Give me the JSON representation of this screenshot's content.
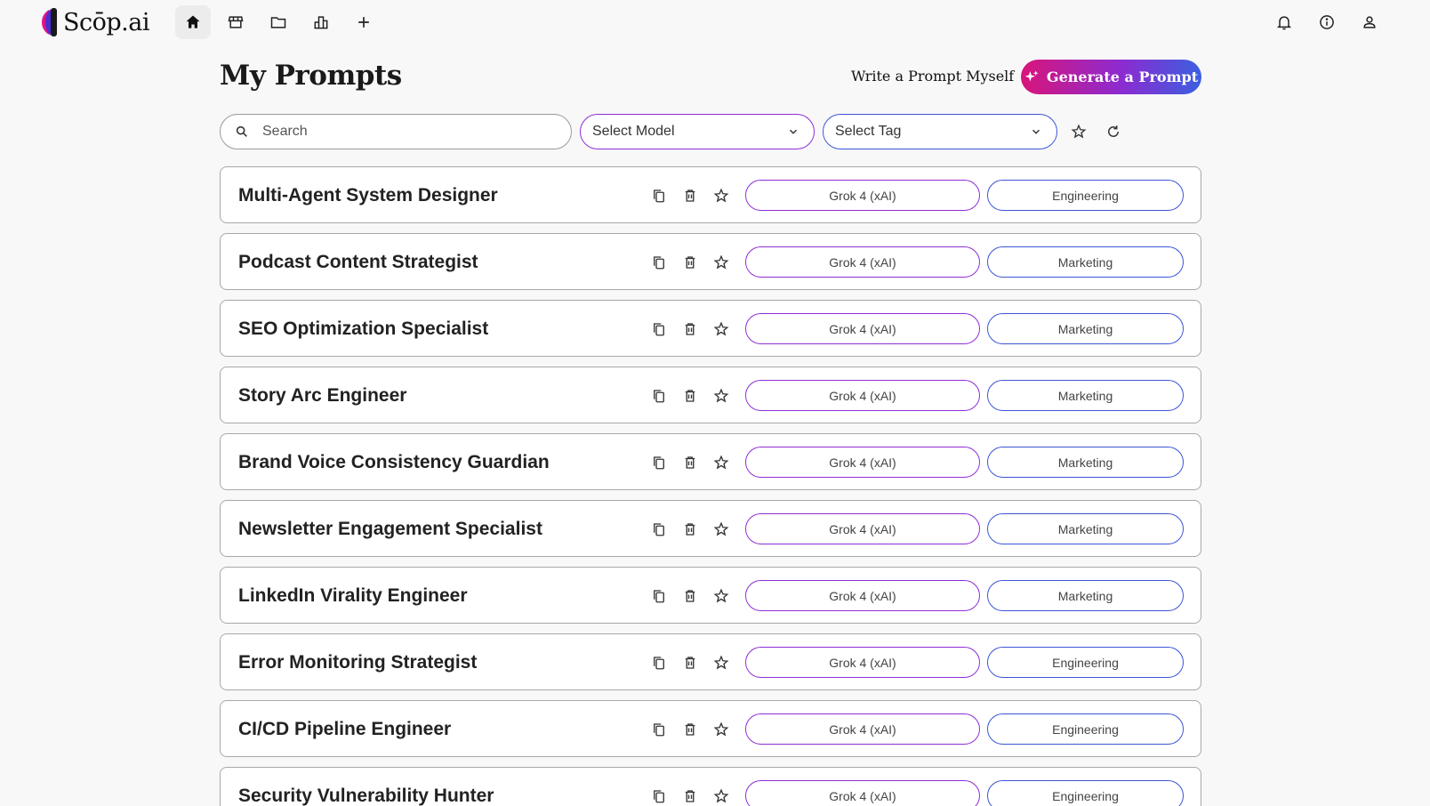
{
  "app": {
    "logo_text": "Scōp.ai"
  },
  "nav": {
    "left_icons": [
      "home-icon",
      "storefront-icon",
      "folder-icon",
      "org-chart-icon",
      "plus-icon"
    ],
    "right_icons": [
      "bell-icon",
      "info-icon",
      "user-icon"
    ]
  },
  "header": {
    "title": "My Prompts",
    "write_link": "Write a Prompt Myself",
    "generate_button": "Generate a Prompt"
  },
  "filters": {
    "search_placeholder": "Search",
    "model_select": "Select Model",
    "tag_select": "Select Tag"
  },
  "colors": {
    "model_border": "#8e2fd6",
    "tag_border": "#3c55d6",
    "gradient_start": "#d8157a",
    "gradient_end": "#3b5fe0"
  },
  "prompts": [
    {
      "title": "Multi-Agent System Designer",
      "model": "Grok 4 (xAI)",
      "tag": "Engineering"
    },
    {
      "title": "Podcast Content Strategist",
      "model": "Grok 4 (xAI)",
      "tag": "Marketing"
    },
    {
      "title": "SEO Optimization Specialist",
      "model": "Grok 4 (xAI)",
      "tag": "Marketing"
    },
    {
      "title": "Story Arc Engineer",
      "model": "Grok 4 (xAI)",
      "tag": "Marketing"
    },
    {
      "title": "Brand Voice Consistency Guardian",
      "model": "Grok 4 (xAI)",
      "tag": "Marketing"
    },
    {
      "title": "Newsletter Engagement Specialist",
      "model": "Grok 4 (xAI)",
      "tag": "Marketing"
    },
    {
      "title": "LinkedIn Virality Engineer",
      "model": "Grok 4 (xAI)",
      "tag": "Marketing"
    },
    {
      "title": "Error Monitoring Strategist",
      "model": "Grok 4 (xAI)",
      "tag": "Engineering"
    },
    {
      "title": "CI/CD Pipeline Engineer",
      "model": "Grok 4 (xAI)",
      "tag": "Engineering"
    },
    {
      "title": "Security Vulnerability Hunter",
      "model": "Grok 4 (xAI)",
      "tag": "Engineering"
    }
  ]
}
